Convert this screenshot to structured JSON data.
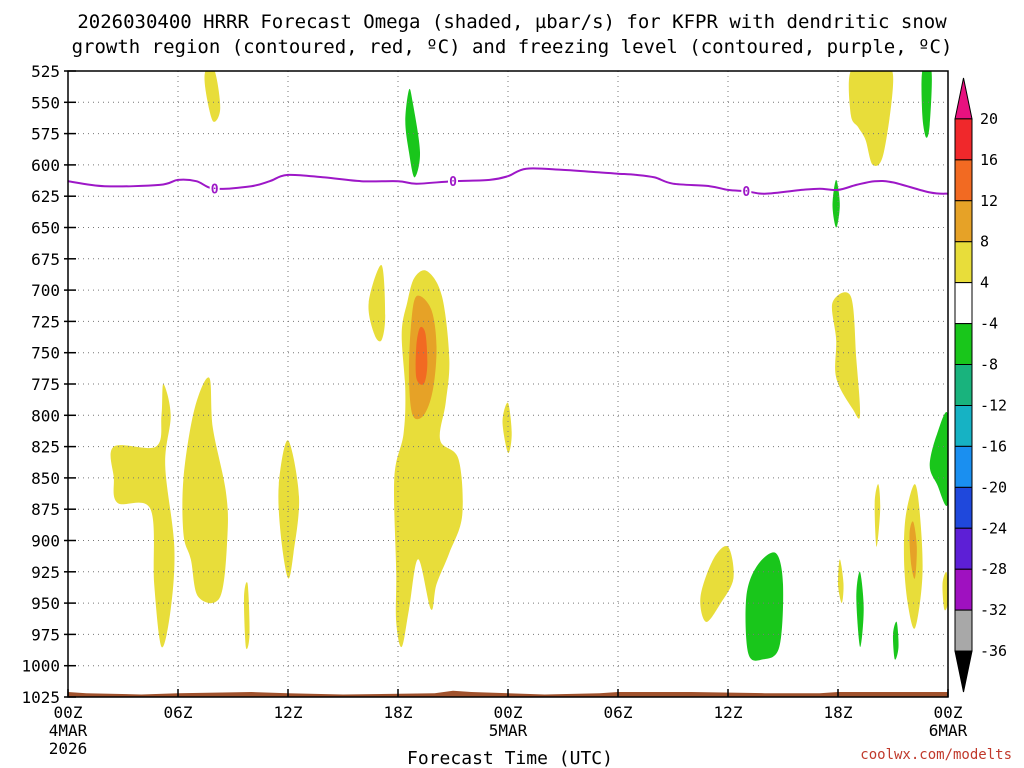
{
  "title_line1": "2026030400 HRRR Forecast Omega (shaded, µbar/s) for KFPR with dendritic snow",
  "title_line2": "growth region (contoured, red, ºC) and freezing level (contoured, purple, ºC)",
  "credit": "coolwx.com/modelts",
  "chart_data": {
    "type": "heatmap",
    "title": "2026030400 HRRR Forecast Omega (shaded, µbar/s) for KFPR with dendritic snow growth region (contoured, red, ºC) and freezing level (contoured, purple, ºC)",
    "xlabel": "Forecast Time (UTC)",
    "ylabel": "",
    "x_range_hours": [
      0,
      48
    ],
    "x_ticks": [
      {
        "h": 0,
        "label": "00Z",
        "sub1": "4MAR",
        "sub2": "2026"
      },
      {
        "h": 6,
        "label": "06Z",
        "sub1": "",
        "sub2": ""
      },
      {
        "h": 12,
        "label": "12Z",
        "sub1": "",
        "sub2": ""
      },
      {
        "h": 18,
        "label": "18Z",
        "sub1": "",
        "sub2": ""
      },
      {
        "h": 24,
        "label": "00Z",
        "sub1": "5MAR",
        "sub2": ""
      },
      {
        "h": 30,
        "label": "06Z",
        "sub1": "",
        "sub2": ""
      },
      {
        "h": 36,
        "label": "12Z",
        "sub1": "",
        "sub2": ""
      },
      {
        "h": 42,
        "label": "18Z",
        "sub1": "",
        "sub2": ""
      },
      {
        "h": 48,
        "label": "00Z",
        "sub1": "6MAR",
        "sub2": ""
      }
    ],
    "y_range_hpa": [
      1025,
      525
    ],
    "y_ticks": [
      525,
      550,
      575,
      600,
      625,
      650,
      675,
      700,
      725,
      750,
      775,
      800,
      825,
      850,
      875,
      900,
      925,
      950,
      975,
      1000,
      1025
    ],
    "grid": true,
    "colorbar": {
      "labels": [
        "20",
        "16",
        "12",
        "8",
        "4",
        "-4",
        "-8",
        "-12",
        "-16",
        "-20",
        "-24",
        "-28",
        "-32",
        "-36"
      ],
      "bins": [
        {
          "lo": 20,
          "hi": 24,
          "color": "#e8117f"
        },
        {
          "lo": 16,
          "hi": 20,
          "color": "#f0282b"
        },
        {
          "lo": 12,
          "hi": 16,
          "color": "#f26a22"
        },
        {
          "lo": 8,
          "hi": 12,
          "color": "#e6a227"
        },
        {
          "lo": 4,
          "hi": 8,
          "color": "#e8dd3a"
        },
        {
          "lo": -4,
          "hi": 4,
          "color": "#ffffff"
        },
        {
          "lo": -8,
          "hi": -4,
          "color": "#19c61b"
        },
        {
          "lo": -12,
          "hi": -8,
          "color": "#19b37d"
        },
        {
          "lo": -16,
          "hi": -12,
          "color": "#16b2c4"
        },
        {
          "lo": -20,
          "hi": -16,
          "color": "#1a8ff0"
        },
        {
          "lo": -24,
          "hi": -20,
          "color": "#1f48dc"
        },
        {
          "lo": -28,
          "hi": -24,
          "color": "#5d1fd6"
        },
        {
          "lo": -32,
          "hi": -28,
          "color": "#9f11c0"
        },
        {
          "lo": -36,
          "hi": -32,
          "color": "#a8a8a8"
        },
        {
          "lo": -40,
          "hi": -36,
          "color": "#000000"
        }
      ]
    },
    "omega_regions": [
      {
        "color": "#e8dd3a",
        "pts": [
          [
            7.5,
            525
          ],
          [
            8,
            525
          ],
          [
            8.3,
            555
          ],
          [
            7.9,
            565
          ],
          [
            7.5,
            540
          ]
        ]
      },
      {
        "color": "#e8dd3a",
        "pts": [
          [
            2.5,
            825
          ],
          [
            4.8,
            825
          ],
          [
            5.1,
            800
          ],
          [
            5.2,
            775
          ],
          [
            5.6,
            800
          ],
          [
            5.3,
            840
          ],
          [
            5.8,
            905
          ],
          [
            5.6,
            955
          ],
          [
            5.1,
            985
          ],
          [
            4.7,
            935
          ],
          [
            4.5,
            875
          ],
          [
            2.7,
            870
          ],
          [
            2.5,
            850
          ]
        ]
      },
      {
        "color": "#e8dd3a",
        "pts": [
          [
            6.3,
            850
          ],
          [
            6.9,
            795
          ],
          [
            7.7,
            770
          ],
          [
            7.9,
            810
          ],
          [
            8.6,
            860
          ],
          [
            8.7,
            895
          ],
          [
            8.3,
            945
          ],
          [
            7.1,
            945
          ],
          [
            6.7,
            915
          ],
          [
            6.3,
            895
          ]
        ]
      },
      {
        "color": "#e8dd3a",
        "pts": [
          [
            9.6,
            945
          ],
          [
            9.8,
            935
          ],
          [
            9.9,
            975
          ],
          [
            9.7,
            985
          ]
        ]
      },
      {
        "color": "#e8dd3a",
        "pts": [
          [
            11.5,
            855
          ],
          [
            12,
            820
          ],
          [
            12.6,
            865
          ],
          [
            12.3,
            910
          ],
          [
            12.0,
            930
          ],
          [
            11.6,
            895
          ]
        ]
      },
      {
        "color": "#e8dd3a",
        "pts": [
          [
            16.4,
            710
          ],
          [
            17.1,
            680
          ],
          [
            17.3,
            720
          ],
          [
            17.1,
            740
          ],
          [
            16.7,
            735
          ]
        ]
      },
      {
        "color": "#e8dd3a",
        "pts": [
          [
            18.5,
            710
          ],
          [
            18.9,
            690
          ],
          [
            19.6,
            685
          ],
          [
            20.4,
            705
          ],
          [
            20.8,
            755
          ],
          [
            20.6,
            790
          ],
          [
            20.3,
            820
          ],
          [
            21.3,
            835
          ],
          [
            21.5,
            880
          ],
          [
            20.8,
            910
          ],
          [
            20.1,
            935
          ],
          [
            19.8,
            955
          ],
          [
            19.1,
            915
          ],
          [
            18.6,
            955
          ],
          [
            18.2,
            985
          ],
          [
            17.9,
            965
          ],
          [
            17.9,
            925
          ],
          [
            17.8,
            850
          ],
          [
            18.3,
            815
          ],
          [
            18.4,
            780
          ],
          [
            18.2,
            735
          ]
        ]
      },
      {
        "color": "#e6a227",
        "pts": [
          [
            18.7,
            730
          ],
          [
            19.0,
            705
          ],
          [
            19.8,
            715
          ],
          [
            20.1,
            745
          ],
          [
            19.9,
            780
          ],
          [
            19.4,
            800
          ],
          [
            18.8,
            800
          ],
          [
            18.6,
            770
          ]
        ]
      },
      {
        "color": "#f26a22",
        "pts": [
          [
            19.0,
            745
          ],
          [
            19.2,
            730
          ],
          [
            19.5,
            735
          ],
          [
            19.6,
            760
          ],
          [
            19.4,
            775
          ],
          [
            19.0,
            770
          ]
        ]
      },
      {
        "color": "#e8dd3a",
        "pts": [
          [
            23.7,
            805
          ],
          [
            24.0,
            790
          ],
          [
            24.2,
            815
          ],
          [
            24.0,
            830
          ]
        ]
      },
      {
        "color": "#e8dd3a",
        "pts": [
          [
            34.5,
            945
          ],
          [
            35.2,
            915
          ],
          [
            36.0,
            905
          ],
          [
            36.3,
            930
          ],
          [
            35.6,
            950
          ],
          [
            34.8,
            965
          ]
        ]
      },
      {
        "color": "#19c61b",
        "pts": [
          [
            37.0,
            945
          ],
          [
            37.6,
            920
          ],
          [
            38.6,
            910
          ],
          [
            39.0,
            935
          ],
          [
            38.8,
            985
          ],
          [
            37.9,
            995
          ],
          [
            37.1,
            990
          ]
        ]
      },
      {
        "color": "#e8dd3a",
        "pts": [
          [
            41.7,
            710
          ],
          [
            42.7,
            705
          ],
          [
            43.0,
            755
          ],
          [
            43.2,
            800
          ],
          [
            42.8,
            795
          ],
          [
            41.9,
            770
          ],
          [
            41.9,
            740
          ]
        ]
      },
      {
        "color": "#e8dd3a",
        "pts": [
          [
            42.0,
            935
          ],
          [
            42.1,
            915
          ],
          [
            42.3,
            935
          ],
          [
            42.2,
            950
          ]
        ]
      },
      {
        "color": "#19c61b",
        "pts": [
          [
            41.7,
            632
          ],
          [
            41.9,
            612
          ],
          [
            42.1,
            632
          ],
          [
            41.9,
            650
          ]
        ]
      },
      {
        "color": "#19c61b",
        "pts": [
          [
            43.0,
            945
          ],
          [
            43.2,
            925
          ],
          [
            43.4,
            955
          ],
          [
            43.2,
            985
          ]
        ]
      },
      {
        "color": "#e8dd3a",
        "pts": [
          [
            44.0,
            870
          ],
          [
            44.2,
            855
          ],
          [
            44.3,
            875
          ],
          [
            44.1,
            905
          ]
        ]
      },
      {
        "color": "#19c61b",
        "pts": [
          [
            45.0,
            975
          ],
          [
            45.2,
            965
          ],
          [
            45.3,
            985
          ],
          [
            45.1,
            995
          ]
        ]
      },
      {
        "color": "#e8dd3a",
        "pts": [
          [
            45.7,
            880
          ],
          [
            46.2,
            855
          ],
          [
            46.5,
            885
          ],
          [
            46.6,
            930
          ],
          [
            46.2,
            970
          ],
          [
            45.8,
            950
          ],
          [
            45.6,
            915
          ]
        ]
      },
      {
        "color": "#e6a227",
        "pts": [
          [
            45.9,
            895
          ],
          [
            46.1,
            885
          ],
          [
            46.3,
            905
          ],
          [
            46.2,
            930
          ],
          [
            46.0,
            920
          ]
        ]
      },
      {
        "color": "#e8dd3a",
        "pts": [
          [
            47.7,
            935
          ],
          [
            47.9,
            925
          ],
          [
            48,
            935
          ],
          [
            48,
            950
          ],
          [
            47.8,
            955
          ]
        ]
      },
      {
        "color": "#19c61b",
        "pts": [
          [
            47.0,
            840
          ],
          [
            47.4,
            815
          ],
          [
            48,
            800
          ],
          [
            48,
            870
          ],
          [
            47.4,
            855
          ]
        ]
      },
      {
        "color": "#e8dd3a",
        "pts": [
          [
            42.7,
            525
          ],
          [
            44.0,
            525
          ],
          [
            45.0,
            528
          ],
          [
            44.5,
            590
          ],
          [
            43.9,
            600
          ],
          [
            43.5,
            580
          ],
          [
            43.1,
            570
          ],
          [
            42.7,
            560
          ]
        ]
      },
      {
        "color": "#19c61b",
        "pts": [
          [
            46.6,
            525
          ],
          [
            47.1,
            525
          ],
          [
            47.0,
            568
          ],
          [
            46.8,
            578
          ],
          [
            46.6,
            560
          ]
        ]
      },
      {
        "color": "#19c61b",
        "pts": [
          [
            18.6,
            540
          ],
          [
            18.8,
            550
          ],
          [
            19.2,
            590
          ],
          [
            18.9,
            610
          ],
          [
            18.6,
            590
          ],
          [
            18.4,
            565
          ]
        ]
      }
    ],
    "freezing_level": {
      "label": "0",
      "label_at_hours": [
        8,
        21,
        37,
        0
      ],
      "points": [
        [
          0,
          613
        ],
        [
          2,
          617
        ],
        [
          5,
          616
        ],
        [
          6,
          612
        ],
        [
          7,
          613
        ],
        [
          8,
          619
        ],
        [
          10,
          617
        ],
        [
          11,
          613
        ],
        [
          12,
          608
        ],
        [
          14,
          610
        ],
        [
          16,
          613
        ],
        [
          18,
          613
        ],
        [
          19,
          615
        ],
        [
          21,
          613
        ],
        [
          23,
          612
        ],
        [
          24,
          609
        ],
        [
          25,
          603
        ],
        [
          27,
          604
        ],
        [
          29,
          606
        ],
        [
          30,
          607
        ],
        [
          31,
          608
        ],
        [
          32,
          610
        ],
        [
          33,
          615
        ],
        [
          35,
          617
        ],
        [
          36,
          620
        ],
        [
          37,
          621
        ],
        [
          38,
          623
        ],
        [
          40,
          620
        ],
        [
          41,
          619
        ],
        [
          42,
          620
        ],
        [
          43,
          616
        ],
        [
          44,
          613
        ],
        [
          45,
          614
        ],
        [
          47,
          622
        ],
        [
          48,
          623
        ]
      ]
    },
    "ground": {
      "color": "#a0522d",
      "points": [
        [
          0,
          1021
        ],
        [
          1,
          1022
        ],
        [
          4,
          1023
        ],
        [
          6,
          1022
        ],
        [
          10,
          1021
        ],
        [
          12,
          1022
        ],
        [
          15,
          1023
        ],
        [
          20,
          1022
        ],
        [
          21,
          1020
        ],
        [
          22,
          1021
        ],
        [
          26,
          1023
        ],
        [
          29,
          1022
        ],
        [
          30,
          1021
        ],
        [
          34,
          1021
        ],
        [
          38,
          1022
        ],
        [
          41,
          1022
        ],
        [
          42,
          1021
        ],
        [
          45,
          1021
        ],
        [
          48,
          1021
        ]
      ]
    }
  }
}
